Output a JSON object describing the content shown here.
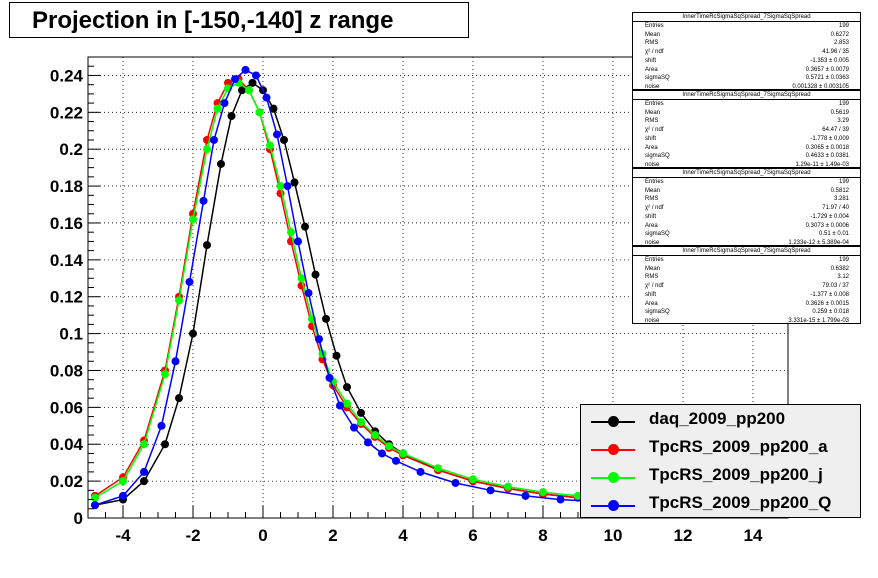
{
  "title": "Projection in [-150,-140] z range",
  "chart_data": {
    "type": "scatter",
    "xlim": [
      -5,
      15
    ],
    "ylim": [
      0,
      0.25
    ],
    "x_ticks": [
      "-4",
      "-2",
      "0",
      "2",
      "4",
      "6",
      "8",
      "10",
      "12",
      "14"
    ],
    "x_tick_values": [
      -4,
      -2,
      0,
      2,
      4,
      6,
      8,
      10,
      12,
      14
    ],
    "y_ticks": [
      "0",
      "0.02",
      "0.04",
      "0.06",
      "0.08",
      "0.1",
      "0.12",
      "0.14",
      "0.16",
      "0.18",
      "0.2",
      "0.22",
      "0.24"
    ],
    "y_tick_values": [
      0,
      0.02,
      0.04,
      0.06,
      0.08,
      0.1,
      0.12,
      0.14,
      0.16,
      0.18,
      0.2,
      0.22,
      0.24
    ],
    "grid": true,
    "legend_position": "bottom-right",
    "series": [
      {
        "name": "daq_2009_pp200",
        "color": "#000000",
        "x": [
          -4.8,
          -4.0,
          -3.4,
          -2.8,
          -2.4,
          -2.0,
          -1.6,
          -1.2,
          -0.9,
          -0.6,
          -0.3,
          0.0,
          0.3,
          0.6,
          0.9,
          1.2,
          1.5,
          1.8,
          2.1,
          2.4,
          2.8,
          3.2,
          3.6,
          4.0,
          5.0,
          6.0,
          7.0,
          8.0,
          9.0
        ],
        "y": [
          0.007,
          0.01,
          0.02,
          0.04,
          0.065,
          0.1,
          0.148,
          0.192,
          0.218,
          0.232,
          0.236,
          0.232,
          0.222,
          0.205,
          0.182,
          0.158,
          0.132,
          0.108,
          0.088,
          0.071,
          0.057,
          0.047,
          0.04,
          0.035,
          0.026,
          0.02,
          0.016,
          0.013,
          0.011
        ]
      },
      {
        "name": "TpcRS_2009_pp200_a",
        "color": "#ff0000",
        "x": [
          -4.8,
          -4.0,
          -3.4,
          -2.8,
          -2.4,
          -2.0,
          -1.6,
          -1.3,
          -1.0,
          -0.7,
          -0.4,
          -0.1,
          0.2,
          0.5,
          0.8,
          1.1,
          1.4,
          1.7,
          2.0,
          2.4,
          2.8,
          3.2,
          3.6,
          4.0,
          5.0,
          6.0,
          7.0,
          8.0,
          9.0
        ],
        "y": [
          0.012,
          0.022,
          0.042,
          0.08,
          0.12,
          0.165,
          0.205,
          0.225,
          0.236,
          0.238,
          0.232,
          0.22,
          0.2,
          0.176,
          0.15,
          0.126,
          0.104,
          0.086,
          0.072,
          0.06,
          0.051,
          0.044,
          0.038,
          0.034,
          0.026,
          0.02,
          0.016,
          0.013,
          0.011
        ]
      },
      {
        "name": "TpcRS_2009_pp200_j",
        "color": "#00ff00",
        "x": [
          -4.8,
          -4.0,
          -3.4,
          -2.8,
          -2.4,
          -2.0,
          -1.6,
          -1.3,
          -1.0,
          -0.7,
          -0.4,
          -0.1,
          0.2,
          0.5,
          0.8,
          1.1,
          1.4,
          1.7,
          2.0,
          2.4,
          2.8,
          3.2,
          3.6,
          4.0,
          5.0,
          6.0,
          7.0,
          8.0,
          9.0
        ],
        "y": [
          0.011,
          0.02,
          0.04,
          0.078,
          0.118,
          0.162,
          0.2,
          0.222,
          0.233,
          0.236,
          0.232,
          0.22,
          0.202,
          0.18,
          0.155,
          0.13,
          0.108,
          0.089,
          0.074,
          0.062,
          0.052,
          0.045,
          0.039,
          0.035,
          0.027,
          0.021,
          0.017,
          0.014,
          0.012
        ]
      },
      {
        "name": "TpcRS_2009_pp200_Q",
        "color": "#0000ff",
        "x": [
          -4.8,
          -4.0,
          -3.4,
          -2.9,
          -2.5,
          -2.1,
          -1.7,
          -1.4,
          -1.1,
          -0.8,
          -0.5,
          -0.2,
          0.1,
          0.4,
          0.7,
          1.0,
          1.3,
          1.6,
          1.9,
          2.2,
          2.6,
          3.0,
          3.4,
          3.8,
          4.5,
          5.5,
          6.5,
          7.5,
          8.5,
          9.5
        ],
        "y": [
          0.007,
          0.012,
          0.025,
          0.05,
          0.085,
          0.128,
          0.172,
          0.205,
          0.225,
          0.238,
          0.243,
          0.24,
          0.228,
          0.208,
          0.18,
          0.15,
          0.122,
          0.097,
          0.076,
          0.061,
          0.049,
          0.041,
          0.035,
          0.031,
          0.025,
          0.019,
          0.015,
          0.012,
          0.01,
          0.009
        ]
      }
    ]
  },
  "stats_boxes": [
    {
      "title": "InnerTimeRcSigmaSqSpread_7SigmaSqSpread",
      "rows": [
        [
          "Entries",
          "199"
        ],
        [
          "Mean",
          "0.6272"
        ],
        [
          "RMS",
          "2.853"
        ],
        [
          "χ² / ndf",
          "41.96 / 35"
        ],
        [
          "shift",
          "-1.353 ± 0.005"
        ],
        [
          "Area",
          "0.3657 ± 0.0079"
        ],
        [
          "sigmaSQ",
          "0.5721 ± 0.0363"
        ],
        [
          "noise",
          "0.001328 ± 0.003105"
        ]
      ]
    },
    {
      "title": "InnerTimeRcSigmaSqSpread_7SigmaSqSpread",
      "rows": [
        [
          "Entries",
          "199"
        ],
        [
          "Mean",
          "0.5619"
        ],
        [
          "RMS",
          "3.29"
        ],
        [
          "χ² / ndf",
          "64.47 / 39"
        ],
        [
          "shift",
          "-1.778 ± 0.009"
        ],
        [
          "Area",
          "0.3065 ± 0.0018"
        ],
        [
          "sigmaSQ",
          "0.4633 ± 0.0381"
        ],
        [
          "noise",
          "1.29e-11 ± 1.49e-03"
        ]
      ]
    },
    {
      "title": "InnerTimeRcSigmaSqSpread_7SigmaSqSpread",
      "rows": [
        [
          "Entries",
          "199"
        ],
        [
          "Mean",
          "0.5812"
        ],
        [
          "RMS",
          "3.281"
        ],
        [
          "χ² / ndf",
          "71.97 / 40"
        ],
        [
          "shift",
          "-1.729 ± 0.004"
        ],
        [
          "Area",
          "0.3073 ± 0.0006"
        ],
        [
          "sigmaSQ",
          "0.51 ± 0.01"
        ],
        [
          "noise",
          "1.233e-12 ± 5.389e-04"
        ]
      ]
    },
    {
      "title": "InnerTimeRcSigmaSqSpread_7SigmaSqSpread",
      "rows": [
        [
          "Entries",
          "199"
        ],
        [
          "Mean",
          "0.6382"
        ],
        [
          "RMS",
          "3.12"
        ],
        [
          "χ² / ndf",
          "79.03 / 37"
        ],
        [
          "shift",
          "-1.377 ± 0.008"
        ],
        [
          "Area",
          "0.3626 ± 0.0015"
        ],
        [
          "sigmaSQ",
          "0.259 ± 0.018"
        ],
        [
          "noise",
          "3.331e-15 ± 1.799e-03"
        ]
      ]
    }
  ]
}
